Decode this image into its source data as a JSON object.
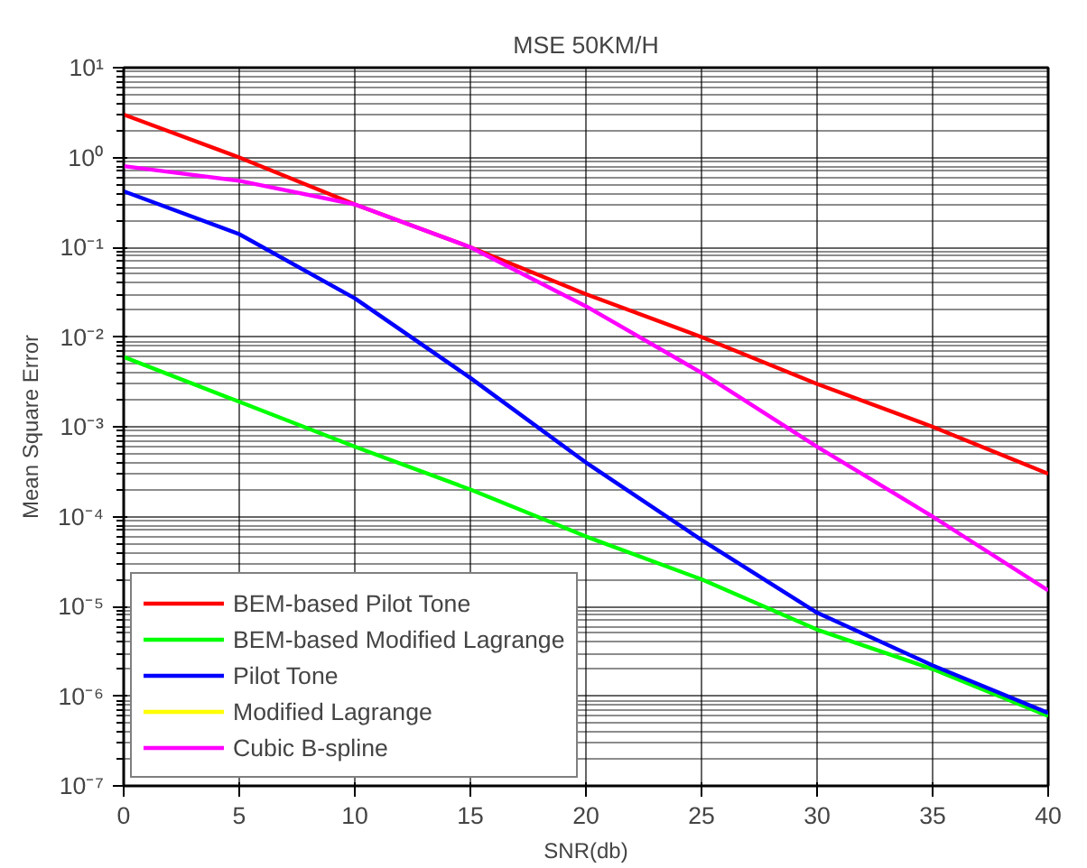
{
  "chart_data": {
    "type": "line",
    "title": "MSE 50KM/H",
    "xlabel": "SNR(db)",
    "ylabel": "Mean Square Error",
    "x": [
      0,
      5,
      10,
      15,
      20,
      25,
      30,
      35,
      40
    ],
    "series": [
      {
        "name": "BEM-based Pilot Tone",
        "color": "#ff0000",
        "values": [
          3,
          1,
          0.3,
          0.1,
          0.03,
          0.01,
          0.003,
          0.001,
          0.0003
        ]
      },
      {
        "name": "BEM-based Modified Lagrange",
        "color": "#00ff00",
        "values": [
          0.006,
          0.0019,
          0.0006,
          0.0002,
          6e-05,
          2e-05,
          5.5e-06,
          2e-06,
          6e-07
        ]
      },
      {
        "name": "Pilot Tone",
        "color": "#0000ff",
        "values": [
          0.42,
          0.14,
          0.027,
          0.0035,
          0.0004,
          5.5e-05,
          8.5e-06,
          2.2e-06,
          6.5e-07
        ]
      },
      {
        "name": "Modified Lagrange",
        "color": "#ffff00",
        "values": [
          null,
          null,
          null,
          null,
          null,
          null,
          null,
          null,
          null
        ]
      },
      {
        "name": "Cubic B-spline",
        "color": "#ff00ff",
        "values": [
          0.8,
          0.55,
          0.3,
          0.1,
          0.022,
          0.004,
          0.0006,
          0.0001,
          1.5e-05
        ]
      }
    ],
    "xlim": [
      0,
      40
    ],
    "xticks": [
      0,
      5,
      10,
      15,
      20,
      25,
      30,
      35,
      40
    ],
    "ylim": [
      1e-07,
      10
    ],
    "yticks": [
      {
        "value": 1e-07,
        "label": "10⁻⁷"
      },
      {
        "value": 1e-06,
        "label": "10⁻⁶"
      },
      {
        "value": 1e-05,
        "label": "10⁻⁵"
      },
      {
        "value": 0.0001,
        "label": "10⁻⁴"
      },
      {
        "value": 0.001,
        "label": "10⁻³"
      },
      {
        "value": 0.01,
        "label": "10⁻²"
      },
      {
        "value": 0.1,
        "label": "10⁻¹"
      },
      {
        "value": 1,
        "label": "10⁰"
      },
      {
        "value": 10,
        "label": "10¹"
      }
    ],
    "log": "y",
    "grid": true,
    "legend": "bottom left",
    "line_style": "solid",
    "marker": "none"
  }
}
